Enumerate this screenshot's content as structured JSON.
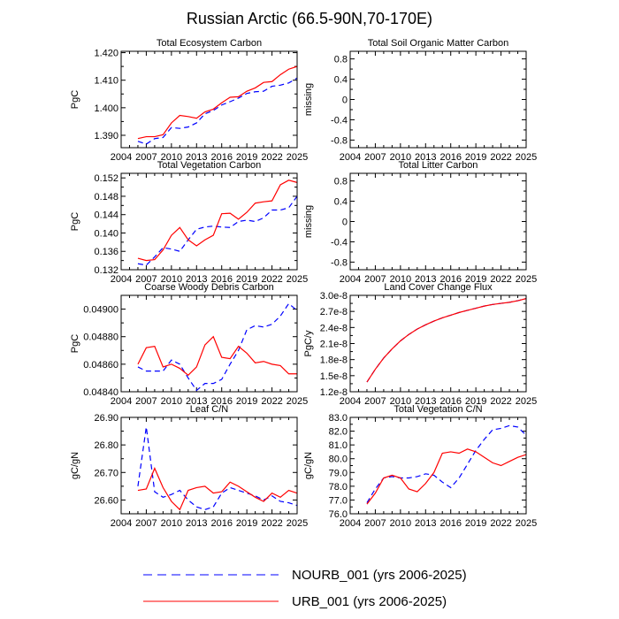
{
  "figure": {
    "title": "Russian Arctic (66.5-90N,70-170E)",
    "legend": [
      {
        "label": "NOURB_001 (yrs 2006-2025)",
        "color": "#0000ff",
        "style": "dashed"
      },
      {
        "label": "URB_001 (yrs 2006-2025)",
        "color": "#ff0000",
        "style": "solid"
      }
    ]
  },
  "chart_data": [
    {
      "type": "line",
      "title": "Total Ecosystem Carbon",
      "ylabel": "PgC",
      "xlim": [
        2004,
        2025
      ],
      "ylim": [
        1.3855,
        1.4205
      ],
      "xticks": [
        "2004",
        "2007",
        "2010",
        "2013",
        "2016",
        "2019",
        "2022",
        "2025"
      ],
      "yticks": [
        1.39,
        1.4,
        1.41,
        1.42
      ],
      "ytick_labels": [
        "1.390",
        "1.400",
        "1.410",
        "1.420"
      ],
      "x": [
        2006,
        2007,
        2008,
        2009,
        2010,
        2011,
        2012,
        2013,
        2014,
        2015,
        2016,
        2017,
        2018,
        2019,
        2020,
        2021,
        2022,
        2023,
        2024,
        2025
      ],
      "series": [
        {
          "name": "NOURB_001",
          "color": "#0000ff",
          "dashed": true,
          "values": [
            1.3878,
            1.3868,
            1.3888,
            1.3892,
            1.3928,
            1.3925,
            1.393,
            1.3945,
            1.3978,
            1.399,
            1.401,
            1.4022,
            1.4035,
            1.4052,
            1.4058,
            1.406,
            1.4078,
            1.4082,
            1.409,
            1.4108
          ]
        },
        {
          "name": "URB_001",
          "color": "#ff0000",
          "dashed": false,
          "values": [
            1.3888,
            1.3895,
            1.3895,
            1.3902,
            1.3945,
            1.3972,
            1.3968,
            1.3962,
            1.3985,
            1.3995,
            1.4018,
            1.4038,
            1.404,
            1.406,
            1.4072,
            1.4092,
            1.4095,
            1.412,
            1.414,
            1.415
          ]
        }
      ]
    },
    {
      "type": "line",
      "title": "Total Soil Organic Matter Carbon",
      "ylabel": "missing",
      "xlim": [
        2004,
        2025
      ],
      "ylim": [
        -0.95,
        0.95
      ],
      "xticks": [
        "2004",
        "2007",
        "2010",
        "2013",
        "2016",
        "2019",
        "2022",
        "2025"
      ],
      "yticks": [
        -0.8,
        -0.4,
        0,
        0.4,
        0.8
      ],
      "ytick_labels": [
        "-0.8",
        "-0.4",
        "0",
        "0.4",
        "0.8"
      ],
      "minor_yticks": [
        -0.6,
        -0.2,
        0.2,
        0.6
      ],
      "x": [],
      "series": []
    },
    {
      "type": "line",
      "title": "Total Vegetation Carbon",
      "ylabel": "PgC",
      "xlim": [
        2004,
        2025
      ],
      "ylim": [
        0.132,
        0.153
      ],
      "xticks": [
        "2004",
        "2007",
        "2010",
        "2013",
        "2016",
        "2019",
        "2022",
        "2025"
      ],
      "yticks": [
        0.132,
        0.136,
        0.14,
        0.144,
        0.148,
        0.152
      ],
      "ytick_labels": [
        "0.132",
        "0.136",
        "0.140",
        "0.144",
        "0.148",
        "0.152"
      ],
      "x": [
        2006,
        2007,
        2008,
        2009,
        2010,
        2011,
        2012,
        2013,
        2014,
        2015,
        2016,
        2017,
        2018,
        2019,
        2020,
        2021,
        2022,
        2023,
        2024,
        2025
      ],
      "series": [
        {
          "name": "NOURB_001",
          "color": "#0000ff",
          "dashed": true,
          "values": [
            0.1333,
            0.133,
            0.1348,
            0.1368,
            0.1365,
            0.136,
            0.1385,
            0.1408,
            0.1413,
            0.1415,
            0.1413,
            0.1412,
            0.1425,
            0.1428,
            0.1425,
            0.1433,
            0.145,
            0.145,
            0.1455,
            0.148
          ]
        },
        {
          "name": "URB_001",
          "color": "#ff0000",
          "dashed": false,
          "values": [
            0.1345,
            0.134,
            0.1342,
            0.1363,
            0.1395,
            0.1412,
            0.1385,
            0.1372,
            0.1385,
            0.1395,
            0.1442,
            0.1443,
            0.143,
            0.1445,
            0.1465,
            0.1468,
            0.147,
            0.1505,
            0.1515,
            0.151
          ]
        }
      ]
    },
    {
      "type": "line",
      "title": "Total Litter Carbon",
      "ylabel": "missing",
      "xlim": [
        2004,
        2025
      ],
      "ylim": [
        -0.95,
        0.95
      ],
      "xticks": [
        "2004",
        "2007",
        "2010",
        "2013",
        "2016",
        "2019",
        "2022",
        "2025"
      ],
      "yticks": [
        -0.8,
        -0.4,
        0,
        0.4,
        0.8
      ],
      "ytick_labels": [
        "-0.8",
        "-0.4",
        "0",
        "0.4",
        "0.8"
      ],
      "minor_yticks": [
        -0.6,
        -0.2,
        0.2,
        0.6
      ],
      "x": [],
      "series": []
    },
    {
      "type": "line",
      "title": "Coarse Woody Debris Carbon",
      "ylabel": "PgC",
      "xlim": [
        2004,
        2025
      ],
      "ylim": [
        0.0484,
        0.0491
      ],
      "xticks": [
        "2004",
        "2007",
        "2010",
        "2013",
        "2016",
        "2019",
        "2022",
        "2025"
      ],
      "yticks": [
        0.0484,
        0.0486,
        0.0488,
        0.049
      ],
      "ytick_labels": [
        "0.04840",
        "0.04860",
        "0.04880",
        "0.04900"
      ],
      "x": [
        2006,
        2007,
        2008,
        2009,
        2010,
        2011,
        2012,
        2013,
        2014,
        2015,
        2016,
        2017,
        2018,
        2019,
        2020,
        2021,
        2022,
        2023,
        2024,
        2025
      ],
      "series": [
        {
          "name": "NOURB_001",
          "color": "#0000ff",
          "dashed": true,
          "values": [
            0.04858,
            0.04855,
            0.04855,
            0.04855,
            0.04863,
            0.0486,
            0.0485,
            0.04841,
            0.04846,
            0.04846,
            0.04849,
            0.0486,
            0.0487,
            0.04885,
            0.04888,
            0.04887,
            0.04889,
            0.04895,
            0.04904,
            0.04899
          ]
        },
        {
          "name": "URB_001",
          "color": "#ff0000",
          "dashed": false,
          "values": [
            0.0486,
            0.04872,
            0.04873,
            0.04858,
            0.0486,
            0.04857,
            0.04852,
            0.04858,
            0.04874,
            0.0488,
            0.04865,
            0.04864,
            0.04873,
            0.04868,
            0.04861,
            0.04862,
            0.0486,
            0.04859,
            0.04853,
            0.04853
          ]
        }
      ]
    },
    {
      "type": "line",
      "title": "Land Cover Change Flux",
      "ylabel": "PgC/y",
      "xlim": [
        2004,
        2025
      ],
      "ylim": [
        1.2e-08,
        3e-08
      ],
      "xticks": [
        "2004",
        "2007",
        "2010",
        "2013",
        "2016",
        "2019",
        "2022",
        "2025"
      ],
      "yticks": [
        1.2e-08,
        1.5e-08,
        1.8e-08,
        2.1e-08,
        2.4e-08,
        2.7e-08,
        3e-08
      ],
      "ytick_labels": [
        "1.2e-8",
        "1.5e-8",
        "1.8e-8",
        "2.1e-8",
        "2.4e-8",
        "2.7e-8",
        "3.0e-8"
      ],
      "x": [
        2006,
        2007,
        2008,
        2009,
        2010,
        2011,
        2012,
        2013,
        2014,
        2015,
        2016,
        2017,
        2018,
        2019,
        2020,
        2021,
        2022,
        2023,
        2024,
        2025
      ],
      "series": [
        {
          "name": "NOURB_001",
          "color": "#0000ff",
          "dashed": true,
          "values": [
            1.38e-08,
            1.62e-08,
            1.83e-08,
            2e-08,
            2.15e-08,
            2.27e-08,
            2.37e-08,
            2.45e-08,
            2.52e-08,
            2.58e-08,
            2.63e-08,
            2.68e-08,
            2.72e-08,
            2.76e-08,
            2.8e-08,
            2.83e-08,
            2.85e-08,
            2.87e-08,
            2.9e-08,
            2.94e-08
          ]
        },
        {
          "name": "URB_001",
          "color": "#ff0000",
          "dashed": false,
          "values": [
            1.38e-08,
            1.62e-08,
            1.83e-08,
            2e-08,
            2.15e-08,
            2.27e-08,
            2.37e-08,
            2.45e-08,
            2.52e-08,
            2.58e-08,
            2.63e-08,
            2.68e-08,
            2.72e-08,
            2.76e-08,
            2.8e-08,
            2.83e-08,
            2.85e-08,
            2.87e-08,
            2.9e-08,
            2.94e-08
          ]
        }
      ]
    },
    {
      "type": "line",
      "title": "Leaf C/N",
      "ylabel": "gC/gN",
      "xlim": [
        2004,
        2025
      ],
      "ylim": [
        26.55,
        26.9
      ],
      "xticks": [
        "2004",
        "2007",
        "2010",
        "2013",
        "2016",
        "2019",
        "2022",
        "2025"
      ],
      "yticks": [
        26.6,
        26.7,
        26.8,
        26.9
      ],
      "ytick_labels": [
        "26.60",
        "26.70",
        "26.80",
        "26.90"
      ],
      "x": [
        2006,
        2007,
        2008,
        2009,
        2010,
        2011,
        2012,
        2013,
        2014,
        2015,
        2016,
        2017,
        2018,
        2019,
        2020,
        2021,
        2022,
        2023,
        2024,
        2025
      ],
      "series": [
        {
          "name": "NOURB_001",
          "color": "#0000ff",
          "dashed": true,
          "values": [
            26.65,
            26.865,
            26.63,
            26.61,
            26.62,
            26.635,
            26.6,
            26.575,
            26.565,
            26.575,
            26.625,
            26.645,
            26.635,
            26.625,
            26.615,
            26.6,
            26.615,
            26.595,
            26.59,
            26.58
          ]
        },
        {
          "name": "URB_001",
          "color": "#ff0000",
          "dashed": false,
          "values": [
            26.635,
            26.64,
            26.715,
            26.645,
            26.595,
            26.565,
            26.635,
            26.645,
            26.65,
            26.625,
            26.63,
            26.665,
            26.65,
            26.63,
            26.61,
            26.595,
            26.625,
            26.61,
            26.635,
            26.625
          ]
        }
      ]
    },
    {
      "type": "line",
      "title": "Total Vegetation C/N",
      "ylabel": "gC/gN",
      "xlim": [
        2004,
        2025
      ],
      "ylim": [
        76.0,
        83.0
      ],
      "xticks": [
        "2004",
        "2007",
        "2010",
        "2013",
        "2016",
        "2019",
        "2022",
        "2025"
      ],
      "yticks": [
        76,
        77,
        78,
        79,
        80,
        81,
        82,
        83
      ],
      "ytick_labels": [
        "76.0",
        "77.0",
        "78.0",
        "79.0",
        "80.0",
        "81.0",
        "82.0",
        "83.0"
      ],
      "x": [
        2006,
        2007,
        2008,
        2009,
        2010,
        2011,
        2012,
        2013,
        2014,
        2015,
        2016,
        2017,
        2018,
        2019,
        2020,
        2021,
        2022,
        2023,
        2024,
        2025
      ],
      "series": [
        {
          "name": "NOURB_001",
          "color": "#0000ff",
          "dashed": true,
          "values": [
            76.8,
            77.8,
            78.6,
            78.7,
            78.6,
            78.6,
            78.7,
            78.9,
            78.8,
            78.3,
            77.9,
            78.6,
            79.6,
            80.6,
            81.4,
            82.1,
            82.2,
            82.4,
            82.3,
            81.7
          ]
        },
        {
          "name": "URB_001",
          "color": "#ff0000",
          "dashed": false,
          "values": [
            76.7,
            77.5,
            78.6,
            78.8,
            78.6,
            77.8,
            77.6,
            78.2,
            79.0,
            80.4,
            80.5,
            80.4,
            80.7,
            80.5,
            80.1,
            79.7,
            79.5,
            79.8,
            80.1,
            80.3
          ]
        }
      ]
    }
  ]
}
